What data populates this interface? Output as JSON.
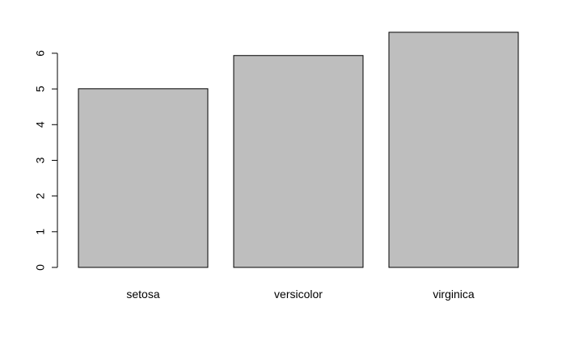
{
  "chart_data": {
    "type": "bar",
    "categories": [
      "setosa",
      "versicolor",
      "virginica"
    ],
    "values": [
      5.006,
      5.936,
      6.588
    ],
    "title": "",
    "xlabel": "",
    "ylabel": "",
    "ylim": [
      0,
      6.588
    ],
    "yticks": [
      "0",
      "1",
      "2",
      "3",
      "4",
      "5",
      "6"
    ],
    "grid": false,
    "legend": "none",
    "colors": {
      "bar_fill": "#bebebe",
      "bar_stroke": "#000000",
      "axis": "#000000",
      "background": "#ffffff"
    }
  }
}
